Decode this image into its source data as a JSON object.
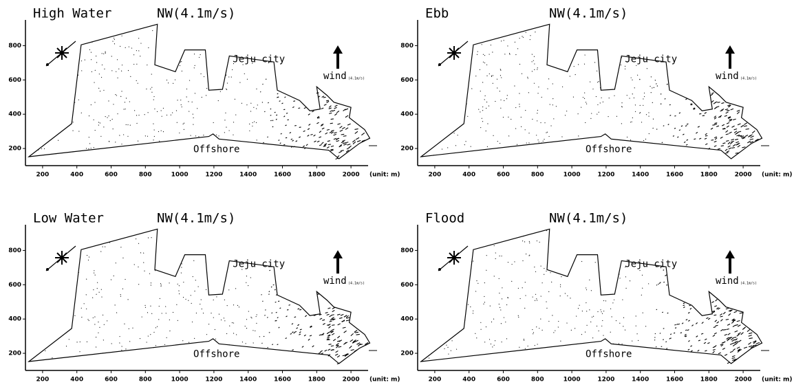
{
  "chart_data": [
    {
      "type": "vector-map",
      "title": "High Water",
      "subtitle": "NW(4.1m/s)",
      "city_label": "Jeju city",
      "offshore_label": "Offshore",
      "wind_label": "wind",
      "wind_speed": "(4.1m/s)",
      "x_unit": "(unit: m)",
      "xlim": [
        100,
        2100
      ],
      "ylim": [
        100,
        950
      ],
      "xticks": [
        200,
        400,
        600,
        800,
        1000,
        1200,
        1400,
        1600,
        1800,
        2000
      ],
      "yticks": [
        200,
        400,
        600,
        800
      ]
    },
    {
      "type": "vector-map",
      "title": "Ebb",
      "subtitle": "NW(4.1m/s)",
      "city_label": "Jeju city",
      "offshore_label": "Offshore",
      "wind_label": "wind",
      "wind_speed": "(4.1m/s)",
      "x_unit": "(unit: m)",
      "xlim": [
        100,
        2100
      ],
      "ylim": [
        100,
        950
      ],
      "xticks": [
        200,
        400,
        600,
        800,
        1000,
        1200,
        1400,
        1600,
        1800,
        2000
      ],
      "yticks": [
        200,
        400,
        600,
        800
      ]
    },
    {
      "type": "vector-map",
      "title": "Low Water",
      "subtitle": "NW(4.1m/s)",
      "city_label": "Jeju city",
      "offshore_label": "Offshore",
      "wind_label": "wind",
      "wind_speed": "(4.1m/s)",
      "x_unit": "(unit: m)",
      "xlim": [
        100,
        2100
      ],
      "ylim": [
        100,
        950
      ],
      "xticks": [
        200,
        400,
        600,
        800,
        1000,
        1200,
        1400,
        1600,
        1800,
        2000
      ],
      "yticks": [
        200,
        400,
        600,
        800
      ]
    },
    {
      "type": "vector-map",
      "title": "Flood",
      "subtitle": "NW(4.1m/s)",
      "city_label": "Jeju city",
      "offshore_label": "Offshore",
      "wind_label": "wind",
      "wind_speed": "(4.1m/s)",
      "x_unit": "(unit: m)",
      "xlim": [
        100,
        2100
      ],
      "ylim": [
        100,
        950
      ],
      "xticks": [
        200,
        400,
        600,
        800,
        1000,
        1200,
        1400,
        1600,
        1800,
        2000
      ],
      "yticks": [
        200,
        400,
        600,
        800
      ]
    }
  ]
}
